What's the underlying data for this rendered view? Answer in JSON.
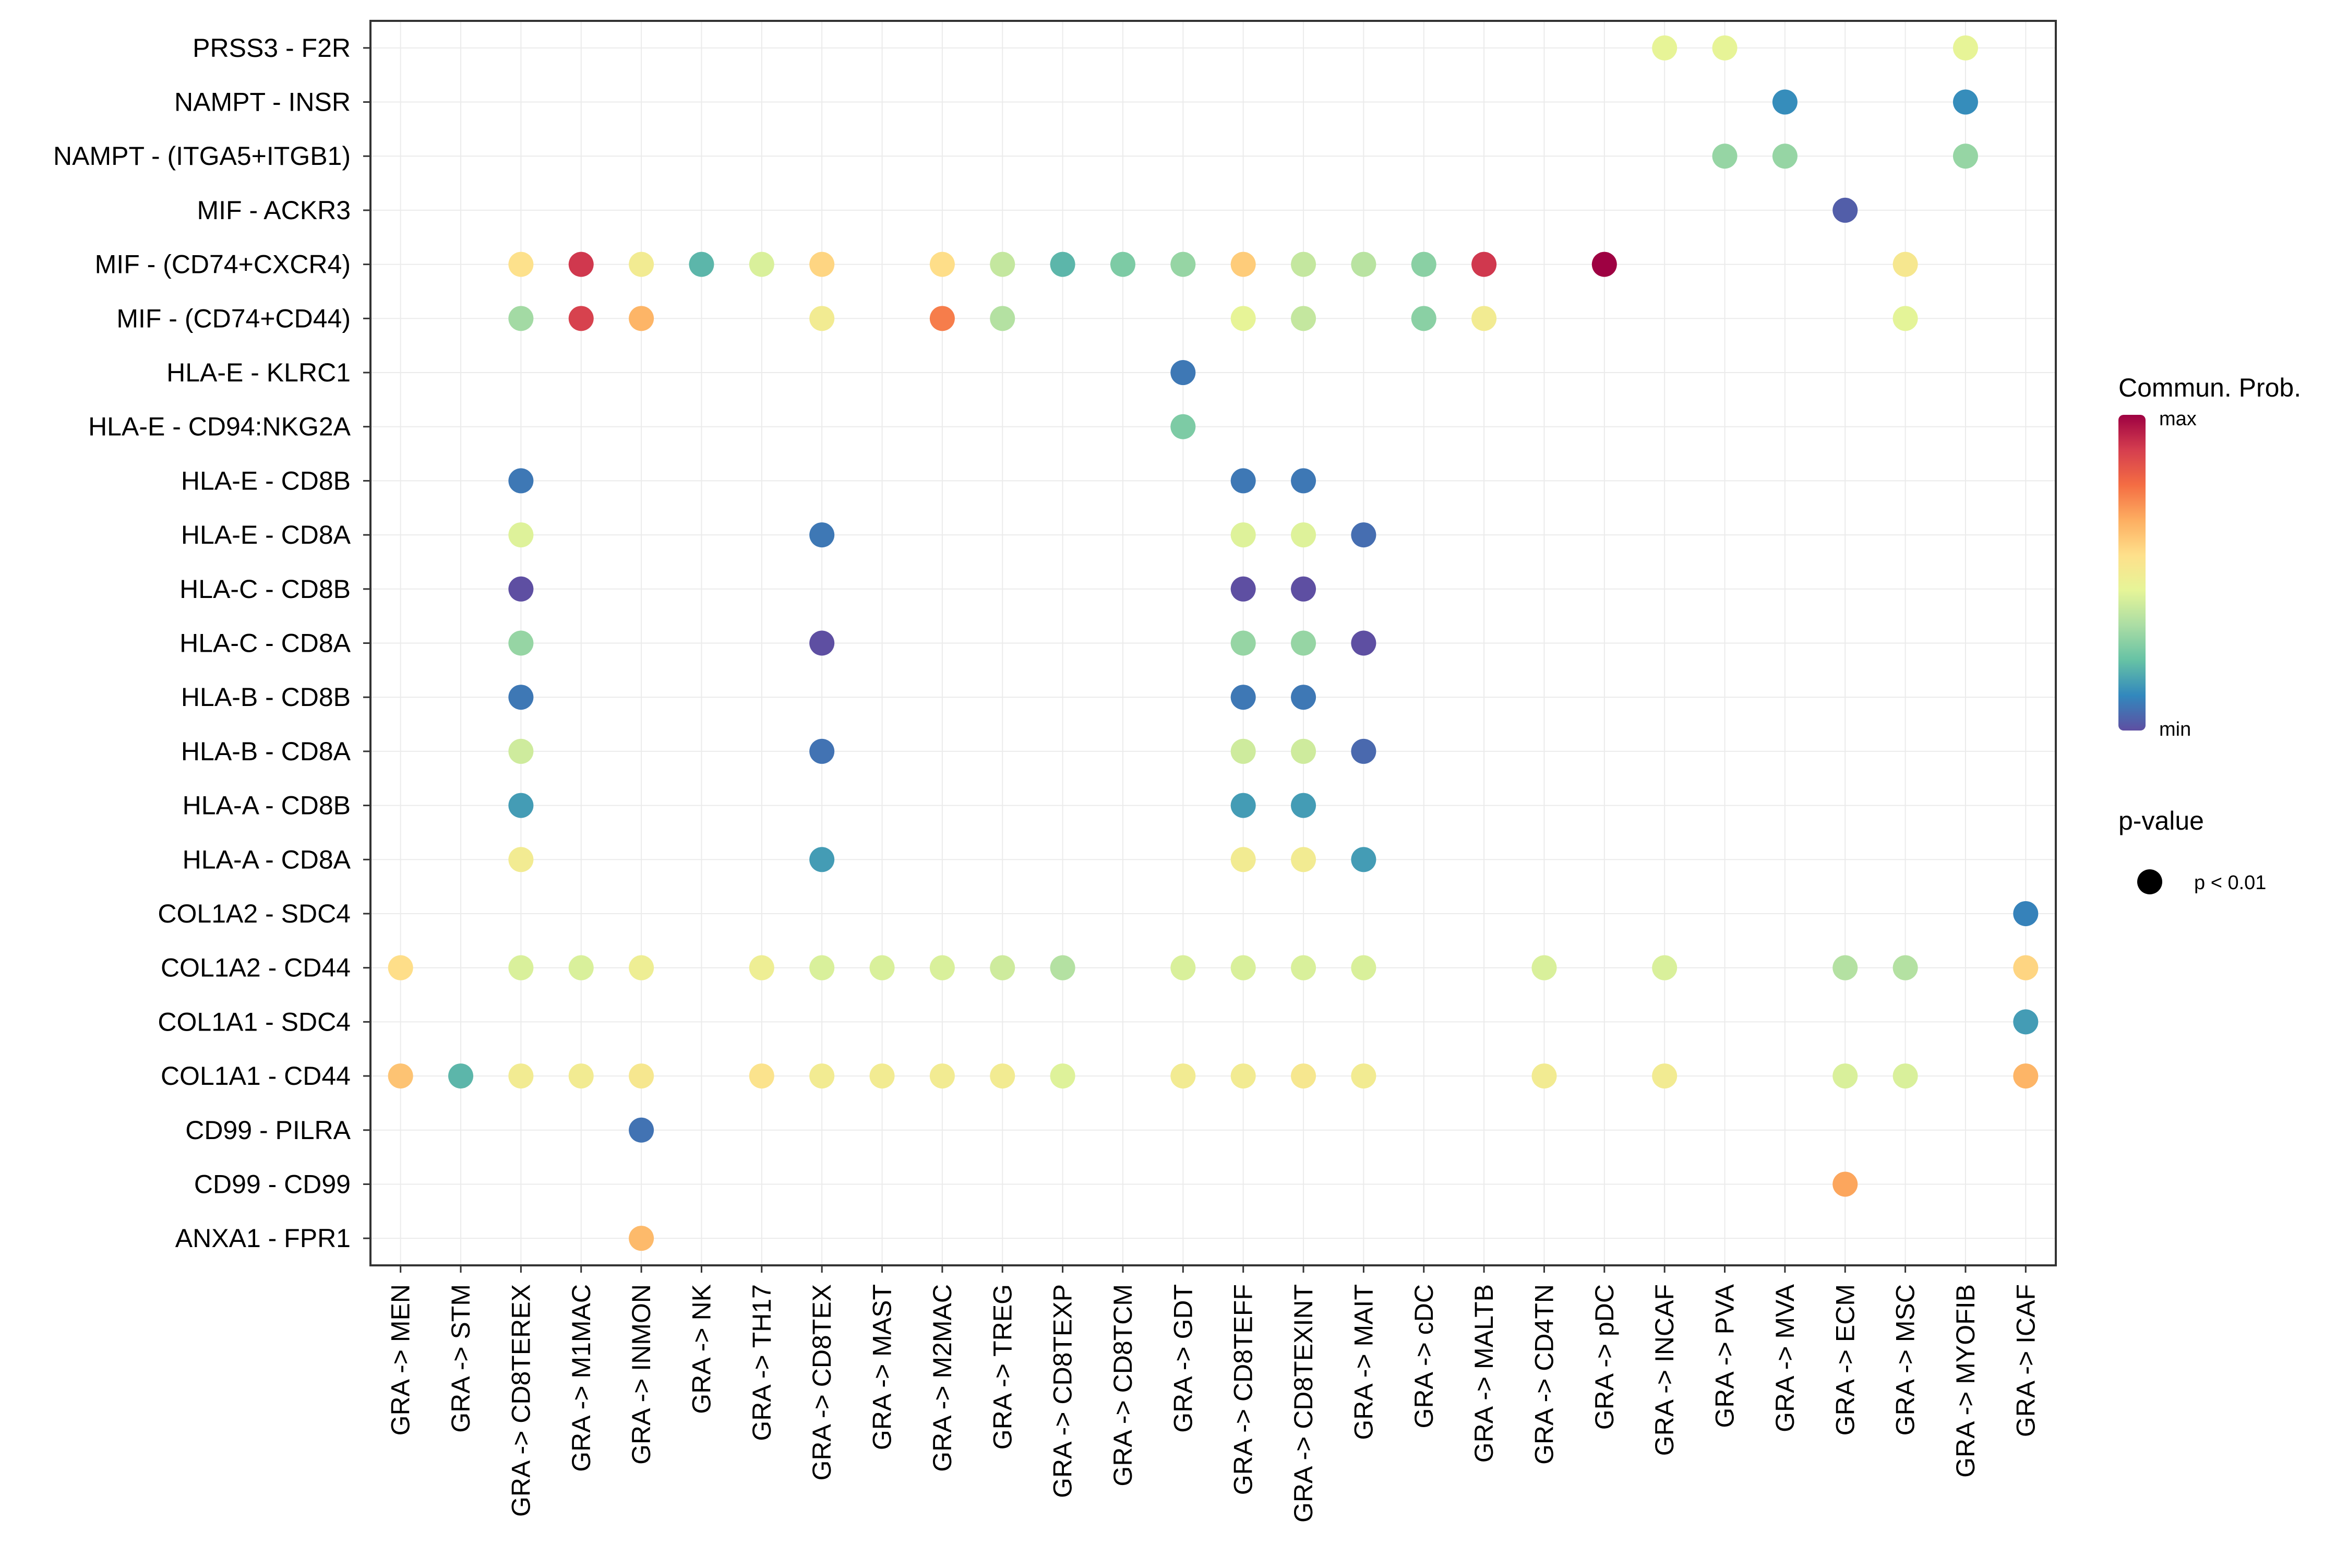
{
  "chart_data": {
    "type": "dot-matrix",
    "value_scale": "relative communication probability (0 = min, 1 = max)",
    "rows": [
      "PRSS3 - F2R",
      "NAMPT - INSR",
      "NAMPT - (ITGA5+ITGB1)",
      "MIF - ACKR3",
      "MIF - (CD74+CXCR4)",
      "MIF - (CD74+CD44)",
      "HLA-E - KLRC1",
      "HLA-E - CD94:NKG2A",
      "HLA-E - CD8B",
      "HLA-E - CD8A",
      "HLA-C - CD8B",
      "HLA-C - CD8A",
      "HLA-B - CD8B",
      "HLA-B - CD8A",
      "HLA-A - CD8B",
      "HLA-A - CD8A",
      "COL1A2 - SDC4",
      "COL1A2 - CD44",
      "COL1A1 - SDC4",
      "COL1A1 - CD44",
      "CD99 - PILRA",
      "CD99 - CD99",
      "ANXA1 - FPR1"
    ],
    "columns": [
      "GRA -> MEN",
      "GRA -> STM",
      "GRA -> CD8TEREX",
      "GRA -> M1MAC",
      "GRA -> INMON",
      "GRA -> NK",
      "GRA -> TH17",
      "GRA -> CD8TEX",
      "GRA -> MAST",
      "GRA -> M2MAC",
      "GRA -> TREG",
      "GRA -> CD8TEXP",
      "GRA -> CD8TCM",
      "GRA -> GDT",
      "GRA -> CD8TEFF",
      "GRA -> CD8TEXINT",
      "GRA -> MAIT",
      "GRA -> cDC",
      "GRA -> MALTB",
      "GRA -> CD4TN",
      "GRA -> pDC",
      "GRA -> INCAF",
      "GRA -> PVA",
      "GRA -> MVA",
      "GRA -> ECM",
      "GRA -> MSC",
      "GRA -> MYOFIB",
      "GRA -> ICAF"
    ],
    "points": [
      {
        "row": "PRSS3 - F2R",
        "col": "GRA -> INCAF",
        "value": 0.45
      },
      {
        "row": "PRSS3 - F2R",
        "col": "GRA -> PVA",
        "value": 0.45
      },
      {
        "row": "PRSS3 - F2R",
        "col": "GRA -> MYOFIB",
        "value": 0.45
      },
      {
        "row": "NAMPT - INSR",
        "col": "GRA -> MVA",
        "value": 0.12
      },
      {
        "row": "NAMPT - INSR",
        "col": "GRA -> MYOFIB",
        "value": 0.12
      },
      {
        "row": "NAMPT - (ITGA5+ITGB1)",
        "col": "GRA -> PVA",
        "value": 0.3
      },
      {
        "row": "NAMPT - (ITGA5+ITGB1)",
        "col": "GRA -> MVA",
        "value": 0.3
      },
      {
        "row": "NAMPT - (ITGA5+ITGB1)",
        "col": "GRA -> MYOFIB",
        "value": 0.3
      },
      {
        "row": "MIF - ACKR3",
        "col": "GRA -> ECM",
        "value": 0.03
      },
      {
        "row": "MIF - (CD74+CXCR4)",
        "col": "GRA -> CD8TEREX",
        "value": 0.55
      },
      {
        "row": "MIF - (CD74+CXCR4)",
        "col": "GRA -> M1MAC",
        "value": 0.9
      },
      {
        "row": "MIF - (CD74+CXCR4)",
        "col": "GRA -> INMON",
        "value": 0.5
      },
      {
        "row": "MIF - (CD74+CXCR4)",
        "col": "GRA -> NK",
        "value": 0.2
      },
      {
        "row": "MIF - (CD74+CXCR4)",
        "col": "GRA -> TH17",
        "value": 0.42
      },
      {
        "row": "MIF - (CD74+CXCR4)",
        "col": "GRA -> CD8TEX",
        "value": 0.58
      },
      {
        "row": "MIF - (CD74+CXCR4)",
        "col": "GRA -> M2MAC",
        "value": 0.56
      },
      {
        "row": "MIF - (CD74+CXCR4)",
        "col": "GRA -> TREG",
        "value": 0.38
      },
      {
        "row": "MIF - (CD74+CXCR4)",
        "col": "GRA -> CD8TEXP",
        "value": 0.2
      },
      {
        "row": "MIF - (CD74+CXCR4)",
        "col": "GRA -> CD8TCM",
        "value": 0.26
      },
      {
        "row": "MIF - (CD74+CXCR4)",
        "col": "GRA -> GDT",
        "value": 0.3
      },
      {
        "row": "MIF - (CD74+CXCR4)",
        "col": "GRA -> CD8TEFF",
        "value": 0.6
      },
      {
        "row": "MIF - (CD74+CXCR4)",
        "col": "GRA -> CD8TEXINT",
        "value": 0.38
      },
      {
        "row": "MIF - (CD74+CXCR4)",
        "col": "GRA -> MAIT",
        "value": 0.36
      },
      {
        "row": "MIF - (CD74+CXCR4)",
        "col": "GRA -> cDC",
        "value": 0.28
      },
      {
        "row": "MIF - (CD74+CXCR4)",
        "col": "GRA -> MALTB",
        "value": 0.9
      },
      {
        "row": "MIF - (CD74+CXCR4)",
        "col": "GRA -> pDC",
        "value": 1.0
      },
      {
        "row": "MIF - (CD74+CXCR4)",
        "col": "GRA -> MSC",
        "value": 0.52
      },
      {
        "row": "MIF - (CD74+CD44)",
        "col": "GRA -> CD8TEREX",
        "value": 0.32
      },
      {
        "row": "MIF - (CD74+CD44)",
        "col": "GRA -> M1MAC",
        "value": 0.88
      },
      {
        "row": "MIF - (CD74+CD44)",
        "col": "GRA -> INMON",
        "value": 0.65
      },
      {
        "row": "MIF - (CD74+CD44)",
        "col": "GRA -> CD8TEX",
        "value": 0.5
      },
      {
        "row": "MIF - (CD74+CD44)",
        "col": "GRA -> M2MAC",
        "value": 0.75
      },
      {
        "row": "MIF - (CD74+CD44)",
        "col": "GRA -> TREG",
        "value": 0.35
      },
      {
        "row": "MIF - (CD74+CD44)",
        "col": "GRA -> CD8TEFF",
        "value": 0.45
      },
      {
        "row": "MIF - (CD74+CD44)",
        "col": "GRA -> CD8TEXINT",
        "value": 0.38
      },
      {
        "row": "MIF - (CD74+CD44)",
        "col": "GRA -> cDC",
        "value": 0.28
      },
      {
        "row": "MIF - (CD74+CD44)",
        "col": "GRA -> MALTB",
        "value": 0.5
      },
      {
        "row": "MIF - (CD74+CD44)",
        "col": "GRA -> MSC",
        "value": 0.44
      },
      {
        "row": "HLA-E - KLRC1",
        "col": "GRA -> GDT",
        "value": 0.08
      },
      {
        "row": "HLA-E - CD94:NKG2A",
        "col": "GRA -> GDT",
        "value": 0.26
      },
      {
        "row": "HLA-E - CD8B",
        "col": "GRA -> CD8TEREX",
        "value": 0.08
      },
      {
        "row": "HLA-E - CD8B",
        "col": "GRA -> CD8TEFF",
        "value": 0.08
      },
      {
        "row": "HLA-E - CD8B",
        "col": "GRA -> CD8TEXINT",
        "value": 0.08
      },
      {
        "row": "HLA-E - CD8A",
        "col": "GRA -> CD8TEREX",
        "value": 0.43
      },
      {
        "row": "HLA-E - CD8A",
        "col": "GRA -> CD8TEX",
        "value": 0.08
      },
      {
        "row": "HLA-E - CD8A",
        "col": "GRA -> CD8TEFF",
        "value": 0.43
      },
      {
        "row": "HLA-E - CD8A",
        "col": "GRA -> CD8TEXINT",
        "value": 0.43
      },
      {
        "row": "HLA-E - CD8A",
        "col": "GRA -> MAIT",
        "value": 0.06
      },
      {
        "row": "HLA-C - CD8B",
        "col": "GRA -> CD8TEREX",
        "value": 0.0
      },
      {
        "row": "HLA-C - CD8B",
        "col": "GRA -> CD8TEFF",
        "value": 0.0
      },
      {
        "row": "HLA-C - CD8B",
        "col": "GRA -> CD8TEXINT",
        "value": 0.0
      },
      {
        "row": "HLA-C - CD8A",
        "col": "GRA -> CD8TEREX",
        "value": 0.3
      },
      {
        "row": "HLA-C - CD8A",
        "col": "GRA -> CD8TEX",
        "value": 0.0
      },
      {
        "row": "HLA-C - CD8A",
        "col": "GRA -> CD8TEFF",
        "value": 0.3
      },
      {
        "row": "HLA-C - CD8A",
        "col": "GRA -> CD8TEXINT",
        "value": 0.3
      },
      {
        "row": "HLA-C - CD8A",
        "col": "GRA -> MAIT",
        "value": 0.0
      },
      {
        "row": "HLA-B - CD8B",
        "col": "GRA -> CD8TEREX",
        "value": 0.08
      },
      {
        "row": "HLA-B - CD8B",
        "col": "GRA -> CD8TEFF",
        "value": 0.08
      },
      {
        "row": "HLA-B - CD8B",
        "col": "GRA -> CD8TEXINT",
        "value": 0.08
      },
      {
        "row": "HLA-B - CD8A",
        "col": "GRA -> CD8TEREX",
        "value": 0.4
      },
      {
        "row": "HLA-B - CD8A",
        "col": "GRA -> CD8TEX",
        "value": 0.07
      },
      {
        "row": "HLA-B - CD8A",
        "col": "GRA -> CD8TEFF",
        "value": 0.4
      },
      {
        "row": "HLA-B - CD8A",
        "col": "GRA -> CD8TEXINT",
        "value": 0.4
      },
      {
        "row": "HLA-B - CD8A",
        "col": "GRA -> MAIT",
        "value": 0.05
      },
      {
        "row": "HLA-A - CD8B",
        "col": "GRA -> CD8TEREX",
        "value": 0.15
      },
      {
        "row": "HLA-A - CD8B",
        "col": "GRA -> CD8TEFF",
        "value": 0.15
      },
      {
        "row": "HLA-A - CD8B",
        "col": "GRA -> CD8TEXINT",
        "value": 0.15
      },
      {
        "row": "HLA-A - CD8A",
        "col": "GRA -> CD8TEREX",
        "value": 0.5
      },
      {
        "row": "HLA-A - CD8A",
        "col": "GRA -> CD8TEX",
        "value": 0.15
      },
      {
        "row": "HLA-A - CD8A",
        "col": "GRA -> CD8TEFF",
        "value": 0.5
      },
      {
        "row": "HLA-A - CD8A",
        "col": "GRA -> CD8TEXINT",
        "value": 0.5
      },
      {
        "row": "HLA-A - CD8A",
        "col": "GRA -> MAIT",
        "value": 0.15
      },
      {
        "row": "COL1A2 - SDC4",
        "col": "GRA -> ICAF",
        "value": 0.1
      },
      {
        "row": "COL1A2 - CD44",
        "col": "GRA -> MEN",
        "value": 0.56
      },
      {
        "row": "COL1A2 - CD44",
        "col": "GRA -> CD8TEREX",
        "value": 0.42
      },
      {
        "row": "COL1A2 - CD44",
        "col": "GRA -> M1MAC",
        "value": 0.42
      },
      {
        "row": "COL1A2 - CD44",
        "col": "GRA -> INMON",
        "value": 0.48
      },
      {
        "row": "COL1A2 - CD44",
        "col": "GRA -> TH17",
        "value": 0.48
      },
      {
        "row": "COL1A2 - CD44",
        "col": "GRA -> CD8TEX",
        "value": 0.42
      },
      {
        "row": "COL1A2 - CD44",
        "col": "GRA -> MAST",
        "value": 0.42
      },
      {
        "row": "COL1A2 - CD44",
        "col": "GRA -> M2MAC",
        "value": 0.42
      },
      {
        "row": "COL1A2 - CD44",
        "col": "GRA -> TREG",
        "value": 0.4
      },
      {
        "row": "COL1A2 - CD44",
        "col": "GRA -> CD8TEXP",
        "value": 0.35
      },
      {
        "row": "COL1A2 - CD44",
        "col": "GRA -> GDT",
        "value": 0.42
      },
      {
        "row": "COL1A2 - CD44",
        "col": "GRA -> CD8TEFF",
        "value": 0.42
      },
      {
        "row": "COL1A2 - CD44",
        "col": "GRA -> CD8TEXINT",
        "value": 0.42
      },
      {
        "row": "COL1A2 - CD44",
        "col": "GRA -> MAIT",
        "value": 0.42
      },
      {
        "row": "COL1A2 - CD44",
        "col": "GRA -> CD4TN",
        "value": 0.42
      },
      {
        "row": "COL1A2 - CD44",
        "col": "GRA -> INCAF",
        "value": 0.42
      },
      {
        "row": "COL1A2 - CD44",
        "col": "GRA -> ECM",
        "value": 0.35
      },
      {
        "row": "COL1A2 - CD44",
        "col": "GRA -> MSC",
        "value": 0.35
      },
      {
        "row": "COL1A2 - CD44",
        "col": "GRA -> ICAF",
        "value": 0.58
      },
      {
        "row": "COL1A1 - SDC4",
        "col": "GRA -> ICAF",
        "value": 0.15
      },
      {
        "row": "COL1A1 - CD44",
        "col": "GRA -> MEN",
        "value": 0.62
      },
      {
        "row": "COL1A1 - CD44",
        "col": "GRA -> STM",
        "value": 0.2
      },
      {
        "row": "COL1A1 - CD44",
        "col": "GRA -> CD8TEREX",
        "value": 0.5
      },
      {
        "row": "COL1A1 - CD44",
        "col": "GRA -> M1MAC",
        "value": 0.5
      },
      {
        "row": "COL1A1 - CD44",
        "col": "GRA -> INMON",
        "value": 0.52
      },
      {
        "row": "COL1A1 - CD44",
        "col": "GRA -> TH17",
        "value": 0.54
      },
      {
        "row": "COL1A1 - CD44",
        "col": "GRA -> CD8TEX",
        "value": 0.5
      },
      {
        "row": "COL1A1 - CD44",
        "col": "GRA -> MAST",
        "value": 0.5
      },
      {
        "row": "COL1A1 - CD44",
        "col": "GRA -> M2MAC",
        "value": 0.5
      },
      {
        "row": "COL1A1 - CD44",
        "col": "GRA -> TREG",
        "value": 0.5
      },
      {
        "row": "COL1A1 - CD44",
        "col": "GRA -> CD8TEXP",
        "value": 0.43
      },
      {
        "row": "COL1A1 - CD44",
        "col": "GRA -> GDT",
        "value": 0.5
      },
      {
        "row": "COL1A1 - CD44",
        "col": "GRA -> CD8TEFF",
        "value": 0.5
      },
      {
        "row": "COL1A1 - CD44",
        "col": "GRA -> CD8TEXINT",
        "value": 0.52
      },
      {
        "row": "COL1A1 - CD44",
        "col": "GRA -> MAIT",
        "value": 0.5
      },
      {
        "row": "COL1A1 - CD44",
        "col": "GRA -> CD4TN",
        "value": 0.5
      },
      {
        "row": "COL1A1 - CD44",
        "col": "GRA -> INCAF",
        "value": 0.5
      },
      {
        "row": "COL1A1 - CD44",
        "col": "GRA -> ECM",
        "value": 0.42
      },
      {
        "row": "COL1A1 - CD44",
        "col": "GRA -> MSC",
        "value": 0.42
      },
      {
        "row": "COL1A1 - CD44",
        "col": "GRA -> ICAF",
        "value": 0.65
      },
      {
        "row": "CD99 - PILRA",
        "col": "GRA -> INMON",
        "value": 0.07
      },
      {
        "row": "CD99 - CD99",
        "col": "GRA -> ECM",
        "value": 0.68
      },
      {
        "row": "ANXA1 - FPR1",
        "col": "GRA -> INMON",
        "value": 0.64
      }
    ],
    "legend": {
      "color_title": "Commun. Prob.",
      "color_max_label": "max",
      "color_min_label": "min",
      "size_title": "p-value",
      "size_label": "p < 0.01"
    },
    "palette": [
      "#5E4FA2",
      "#3288BD",
      "#66C2A5",
      "#ABDDA4",
      "#E6F598",
      "#FEE08B",
      "#FDAE61",
      "#F46D43",
      "#D53E4F",
      "#9E0142"
    ],
    "colors": {
      "grid": "#EBEBEB",
      "panel_border": "#333333",
      "size_key_dot": "#000000"
    }
  }
}
